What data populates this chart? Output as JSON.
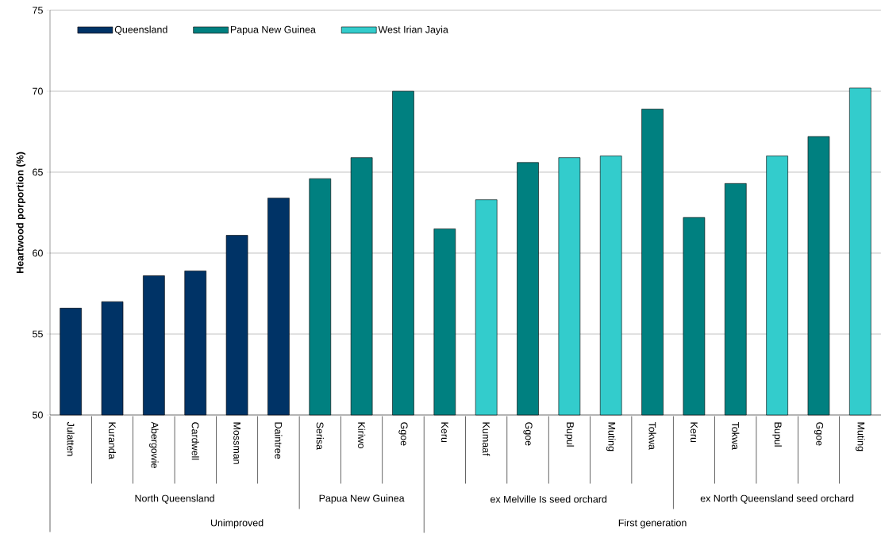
{
  "chart_data": {
    "type": "bar",
    "ylabel": "Heartwood porportion (%)",
    "categories": [
      "Julatten",
      "Kuranda",
      "Abergowie",
      "Cardwell",
      "Mossman",
      "Daintree",
      "Serisa",
      "Kiriwo",
      "Ggoe",
      "Keru",
      "Kumaaf",
      "Ggoe",
      "Bupul",
      "Muting",
      "Tokwa",
      "Keru",
      "Tokwa",
      "Bupul",
      "Ggoe",
      "Muting"
    ],
    "series": [
      {
        "name": "Queensland",
        "color": "#003366",
        "values": [
          56.6,
          57.0,
          58.6,
          58.9,
          61.1,
          63.4,
          null,
          null,
          null,
          null,
          null,
          null,
          null,
          null,
          null,
          null,
          null,
          null,
          null,
          null
        ]
      },
      {
        "name": "Papua New Guinea",
        "color": "#008080",
        "values": [
          null,
          null,
          null,
          null,
          null,
          null,
          64.6,
          65.9,
          70.0,
          61.5,
          null,
          65.6,
          null,
          null,
          68.9,
          62.2,
          64.3,
          null,
          67.2,
          null
        ]
      },
      {
        "name": "West Irian Jayia",
        "color": "#33cccc",
        "values": [
          null,
          null,
          null,
          null,
          null,
          null,
          null,
          null,
          null,
          null,
          63.3,
          null,
          65.9,
          66.0,
          null,
          null,
          null,
          66.0,
          null,
          70.2
        ]
      }
    ],
    "annotations": [
      "North Queensland",
      "Papua New Guinea",
      "ex Melville Is seed orchard",
      "ex North Queensland seed orchard",
      "Unimproved",
      "First generation"
    ],
    "ylim": [
      50,
      75
    ],
    "yticks": [
      50,
      55,
      60,
      65,
      70,
      75
    ],
    "grid": "y",
    "legend": "top left"
  }
}
